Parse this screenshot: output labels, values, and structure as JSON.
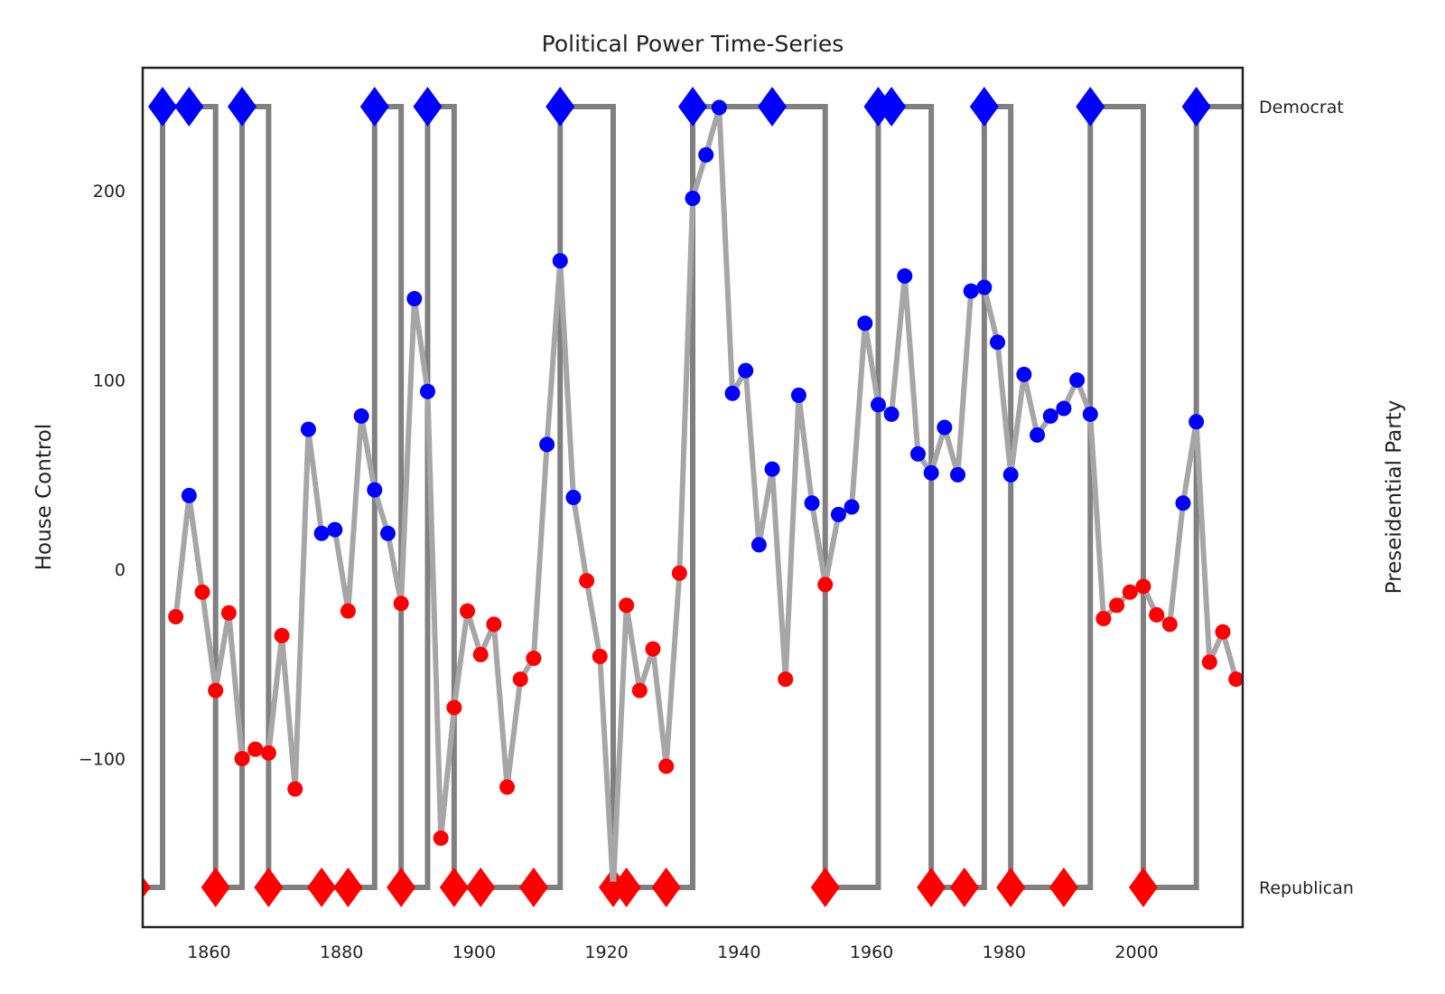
{
  "chart_data": {
    "type": "line",
    "title": "Political Power Time-Series",
    "xlabel": "",
    "ylabel": "House Control",
    "y2label": "Preseidential Party",
    "xlim": [
      1850,
      2016
    ],
    "ylim": [
      -189,
      265
    ],
    "x_ticks": [
      1860,
      1880,
      1900,
      1920,
      1940,
      1960,
      1980,
      2000
    ],
    "y_ticks": [
      -100,
      0,
      100,
      200
    ],
    "y2_tick_labels": [
      "Democrat",
      "Republican"
    ],
    "grid": false,
    "colors": {
      "democrat": "#0000ff",
      "republican": "#ff0000",
      "house_line": "#a6a6a6",
      "presidential_line": "#808080",
      "frame": "#222222"
    },
    "series": [
      {
        "kind": "house",
        "x": [
          1855,
          1857,
          1859,
          1861,
          1863,
          1865,
          1867,
          1869,
          1871,
          1873,
          1875,
          1877,
          1879,
          1881,
          1883,
          1885,
          1887,
          1889,
          1891,
          1893,
          1895,
          1897,
          1899,
          1901,
          1903,
          1905,
          1907,
          1909,
          1911,
          1913,
          1915,
          1917,
          1919,
          1921,
          1923,
          1925,
          1927,
          1929,
          1931,
          1933,
          1935,
          1937,
          1939,
          1941,
          1943,
          1945,
          1947,
          1949,
          1951,
          1953,
          1955,
          1957,
          1959,
          1961,
          1963,
          1965,
          1967,
          1969,
          1971,
          1973,
          1975,
          1977,
          1979,
          1981,
          1983,
          1985,
          1987,
          1989,
          1991,
          1993,
          1995,
          1997,
          1999,
          2001,
          2003,
          2005,
          2007,
          2009,
          2011,
          2013,
          2015
        ],
        "values": [
          -25,
          39,
          -12,
          -64,
          -23,
          -100,
          -95,
          -97,
          -35,
          -116,
          74,
          19,
          21,
          -22,
          81,
          42,
          19,
          -18,
          143,
          94,
          -142,
          -73,
          -22,
          -45,
          -29,
          -115,
          -58,
          -47,
          66,
          163,
          38,
          -6,
          -46,
          -169,
          -19,
          -64,
          -42,
          -104,
          -2,
          196,
          219,
          244,
          93,
          105,
          13,
          53,
          -58,
          92,
          35,
          -8,
          29,
          33,
          130,
          87,
          82,
          155,
          61,
          51,
          75,
          50,
          147,
          149,
          120,
          50,
          103,
          71,
          81,
          85,
          100,
          82,
          -26,
          -19,
          -12,
          -9,
          -24,
          -29,
          35,
          78,
          -49,
          -33,
          -58
        ]
      },
      {
        "kind": "presidency",
        "x": [
          1849,
          1853,
          1857,
          1861,
          1865,
          1869,
          1877,
          1881,
          1885,
          1889,
          1893,
          1897,
          1901,
          1909,
          1913,
          1921,
          1923,
          1929,
          1933,
          1945,
          1953,
          1961,
          1963,
          1969,
          1974,
          1977,
          1981,
          1989,
          1993,
          2001,
          2009
        ],
        "party": [
          "Republican",
          "Democrat",
          "Democrat",
          "Republican",
          "Democrat",
          "Republican",
          "Republican",
          "Republican",
          "Democrat",
          "Republican",
          "Democrat",
          "Republican",
          "Republican",
          "Republican",
          "Democrat",
          "Republican",
          "Republican",
          "Republican",
          "Democrat",
          "Democrat",
          "Republican",
          "Democrat",
          "Democrat",
          "Republican",
          "Republican",
          "Democrat",
          "Republican",
          "Republican",
          "Democrat",
          "Republican",
          "Democrat"
        ],
        "end_x": 2016
      }
    ]
  }
}
